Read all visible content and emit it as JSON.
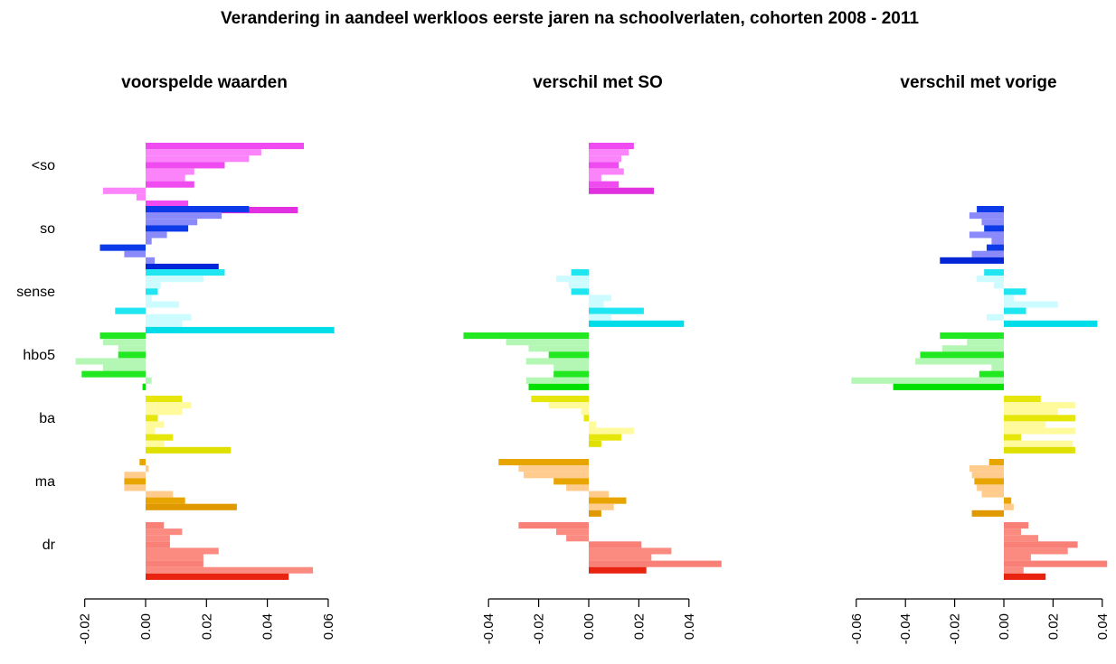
{
  "title": "Verandering in aandeel werkloos eerste jaren na schoolverlaten, cohorten 2008 - 2011",
  "group_labels": [
    "<so",
    "so",
    "sense",
    "hbo5",
    "ba",
    "ma",
    "dr"
  ],
  "chart_data": [
    {
      "type": "bar",
      "orientation": "horizontal",
      "title": "voorspelde waarden",
      "xlim": [
        -0.025,
        0.065
      ],
      "xticks": [
        -0.02,
        0.0,
        0.02,
        0.04,
        0.06
      ],
      "xtick_labels": [
        "-0.02",
        "0.00",
        "0.02",
        "0.04",
        "0.06"
      ],
      "grid": false,
      "groups": [
        {
          "label": "<so",
          "values": [
            0.052,
            0.038,
            0.034,
            0.026,
            0.016,
            0.013,
            0.016,
            -0.014,
            -0.003,
            0.014,
            0.05
          ]
        },
        {
          "label": "so",
          "values": [
            0.034,
            0.025,
            0.017,
            0.014,
            0.007,
            0.002,
            -0.015,
            -0.007,
            0.003,
            0.024
          ]
        },
        {
          "label": "sense",
          "values": [
            0.026,
            0.019,
            0.005,
            0.004,
            0.002,
            0.011,
            -0.01,
            0.015,
            0.012,
            0.062
          ]
        },
        {
          "label": "hbo5",
          "values": [
            -0.015,
            -0.014,
            -0.009,
            -0.009,
            -0.023,
            -0.014,
            -0.021,
            0.002,
            -0.001
          ]
        },
        {
          "label": "ba",
          "values": [
            0.012,
            0.015,
            0.012,
            0.004,
            0.006,
            0.003,
            0.009,
            0.006,
            0.028
          ]
        },
        {
          "label": "ma",
          "values": [
            -0.002,
            0.001,
            -0.007,
            -0.007,
            -0.007,
            0.009,
            0.013,
            0.03
          ]
        },
        {
          "label": "dr",
          "values": [
            0.006,
            0.012,
            0.008,
            0.008,
            0.024,
            0.019,
            0.019,
            0.055,
            0.047
          ]
        }
      ]
    },
    {
      "type": "bar",
      "orientation": "horizontal",
      "title": "verschil met SO",
      "xlim": [
        -0.048,
        0.058
      ],
      "xticks": [
        -0.04,
        -0.02,
        0.0,
        0.02,
        0.04
      ],
      "xtick_labels": [
        "-0.04",
        "-0.02",
        "0.00",
        "0.02",
        "0.04"
      ],
      "grid": false,
      "groups": [
        {
          "label": "<so",
          "values": [
            0.018,
            0.016,
            0.013,
            0.012,
            0.014,
            0.005,
            0.012,
            0.026
          ]
        },
        {
          "label": "so",
          "values": []
        },
        {
          "label": "sense",
          "values": [
            -0.007,
            -0.013,
            -0.008,
            -0.007,
            0.009,
            0.006,
            0.022,
            0.009,
            0.038
          ]
        },
        {
          "label": "hbo5",
          "values": [
            -0.05,
            -0.033,
            -0.024,
            -0.016,
            -0.025,
            -0.014,
            -0.014,
            -0.025,
            -0.024
          ]
        },
        {
          "label": "ba",
          "values": [
            -0.023,
            -0.016,
            -0.003,
            -0.002,
            0.003,
            0.018,
            0.013,
            0.005
          ]
        },
        {
          "label": "ma",
          "values": [
            -0.036,
            -0.028,
            -0.026,
            -0.014,
            -0.009,
            0.008,
            0.015,
            0.01,
            0.005
          ]
        },
        {
          "label": "dr",
          "values": [
            -0.028,
            -0.013,
            -0.009,
            0.021,
            0.033,
            0.025,
            0.053,
            0.023
          ]
        }
      ]
    },
    {
      "type": "bar",
      "orientation": "horizontal",
      "title": "verschil met vorige",
      "xlim": [
        -0.066,
        0.046
      ],
      "xticks": [
        -0.06,
        -0.04,
        -0.02,
        0.0,
        0.02,
        0.04
      ],
      "xtick_labels": [
        "-0.06",
        "-0.04",
        "-0.02",
        "0.00",
        "0.02",
        "0.04"
      ],
      "grid": false,
      "groups": [
        {
          "label": "<so",
          "values": []
        },
        {
          "label": "so",
          "values": [
            -0.011,
            -0.014,
            -0.009,
            -0.008,
            -0.014,
            -0.005,
            -0.007,
            -0.013,
            -0.026
          ]
        },
        {
          "label": "sense",
          "values": [
            -0.008,
            -0.011,
            -0.004,
            0.009,
            0.004,
            0.022,
            0.009,
            -0.007,
            0.038
          ]
        },
        {
          "label": "hbo5",
          "values": [
            -0.026,
            -0.015,
            -0.025,
            -0.034,
            -0.036,
            -0.005,
            -0.01,
            -0.062,
            -0.045
          ]
        },
        {
          "label": "ba",
          "values": [
            0.015,
            0.029,
            0.022,
            0.029,
            0.017,
            0.029,
            0.007,
            0.028,
            0.029
          ]
        },
        {
          "label": "ma",
          "values": [
            -0.006,
            -0.014,
            -0.013,
            -0.012,
            -0.011,
            -0.009,
            0.003,
            0.004,
            -0.013
          ]
        },
        {
          "label": "dr",
          "values": [
            0.01,
            0.007,
            0.014,
            0.03,
            0.026,
            0.011,
            0.042,
            0.008,
            0.017
          ]
        }
      ]
    }
  ],
  "colors": {
    "<so": {
      "light": "#fb84fb",
      "medium": "#f04bf0",
      "dark": "#e030e0"
    },
    "so": {
      "light": "#8a8afb",
      "medium": "#0d3ae8",
      "dark": "#0026d8"
    },
    "sense": {
      "light": "#ccfcff",
      "medium": "#1fe6f0",
      "dark": "#00dde8"
    },
    "hbo5": {
      "light": "#b4f6b4",
      "medium": "#22e822",
      "dark": "#00e000"
    },
    "ba": {
      "light": "#fffa9c",
      "medium": "#e6e60a",
      "dark": "#e0e000"
    },
    "ma": {
      "light": "#ffcc8e",
      "medium": "#e8a500",
      "dark": "#e09a00"
    },
    "dr": {
      "light": "#fb8b80",
      "medium": "#f88077",
      "dark": "#e8230f"
    }
  }
}
